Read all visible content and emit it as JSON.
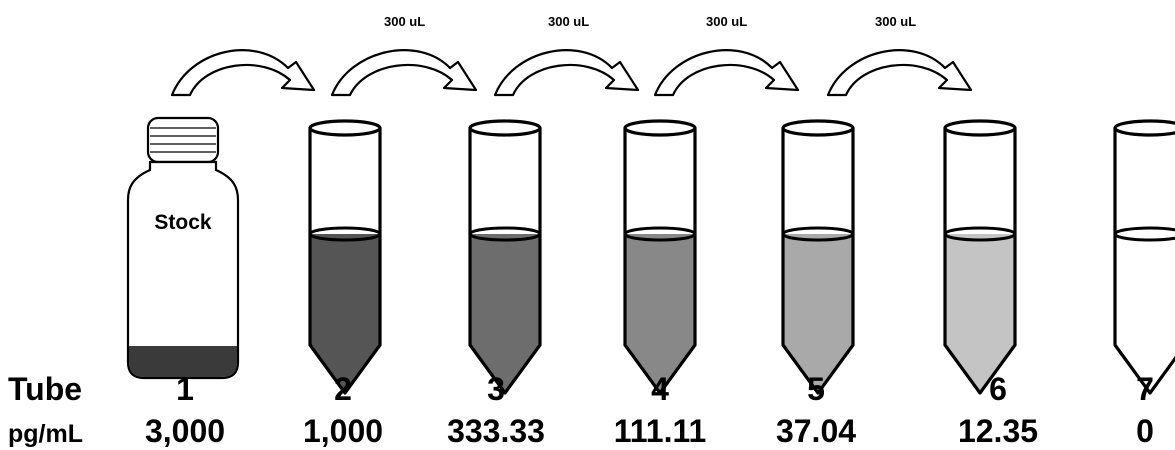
{
  "transfer_labels": [
    "300 uL",
    "300 uL",
    "300 uL",
    "300 uL"
  ],
  "stock_label": "Stock",
  "row_tube_label": "Tube",
  "row_unit_label": "pg/mL",
  "tubes": [
    {
      "number": "1",
      "concentration": "3,000"
    },
    {
      "number": "2",
      "concentration": "1,000"
    },
    {
      "number": "3",
      "concentration": "333.33"
    },
    {
      "number": "4",
      "concentration": "111.11"
    },
    {
      "number": "5",
      "concentration": "37.04"
    },
    {
      "number": "6",
      "concentration": "12.35"
    },
    {
      "number": "7",
      "concentration": "0"
    }
  ],
  "colors": {
    "stock_liquid": "#3a3a3a",
    "tube_fills": [
      "#555555",
      "#6d6d6d",
      "#888888",
      "#a9a9a9",
      "#c4c4c4",
      "#ffffff"
    ],
    "outline": "#000000"
  }
}
